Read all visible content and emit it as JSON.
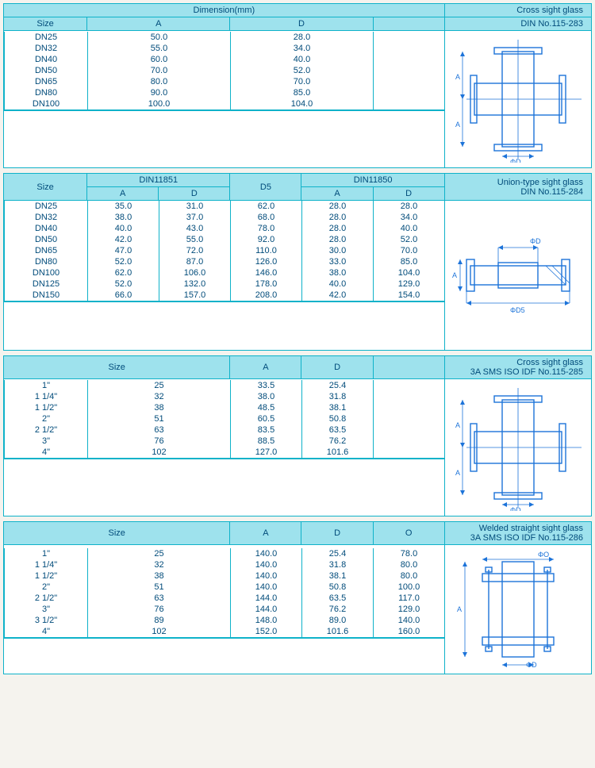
{
  "colors": {
    "header_bg": "#9ee2ed",
    "border": "#0fb2c9",
    "text": "#004b7a",
    "diagram": "#1c73d9",
    "page_bg": "#f5f3ee"
  },
  "table1": {
    "title_main": "Dimension(mm)",
    "title_right": "Cross sight glass",
    "subhead_size": "Size",
    "subhead_A": "A",
    "subhead_D": "D",
    "subhead_right": "DIN    No.115-283",
    "rows": [
      {
        "s": "DN25",
        "a": "50.0",
        "d": "28.0"
      },
      {
        "s": "DN32",
        "a": "55.0",
        "d": "34.0"
      },
      {
        "s": "DN40",
        "a": "60.0",
        "d": "40.0"
      },
      {
        "s": "DN50",
        "a": "70.0",
        "d": "52.0"
      },
      {
        "s": "DN65",
        "a": "80.0",
        "d": "70.0"
      },
      {
        "s": "DN80",
        "a": "90.0",
        "d": "85.0"
      },
      {
        "s": "DN100",
        "a": "100.0",
        "d": "104.0"
      }
    ],
    "diagram": {
      "label_A": "A",
      "label_D": "ΦD"
    }
  },
  "table2": {
    "title_right1": "Union-type sight glass",
    "title_right2": "DIN    No.115-284",
    "h_size": "Size",
    "h_din1": "DIN11851",
    "h_d5": "D5",
    "h_din2": "DIN11850",
    "h_a": "A",
    "h_d": "D",
    "rows": [
      {
        "s": "DN25",
        "a1": "35.0",
        "d1": "31.0",
        "d5": "62.0",
        "a2": "28.0",
        "d2": "28.0"
      },
      {
        "s": "DN32",
        "a1": "38.0",
        "d1": "37.0",
        "d5": "68.0",
        "a2": "28.0",
        "d2": "34.0"
      },
      {
        "s": "DN40",
        "a1": "40.0",
        "d1": "43.0",
        "d5": "78.0",
        "a2": "28.0",
        "d2": "40.0"
      },
      {
        "s": "DN50",
        "a1": "42.0",
        "d1": "55.0",
        "d5": "92.0",
        "a2": "28.0",
        "d2": "52.0"
      },
      {
        "s": "DN65",
        "a1": "47.0",
        "d1": "72.0",
        "d5": "110.0",
        "a2": "30.0",
        "d2": "70.0"
      },
      {
        "s": "DN80",
        "a1": "52.0",
        "d1": "87.0",
        "d5": "126.0",
        "a2": "33.0",
        "d2": "85.0"
      },
      {
        "s": "DN100",
        "a1": "62.0",
        "d1": "106.0",
        "d5": "146.0",
        "a2": "38.0",
        "d2": "104.0"
      },
      {
        "s": "DN125",
        "a1": "52.0",
        "d1": "132.0",
        "d5": "178.0",
        "a2": "40.0",
        "d2": "129.0"
      },
      {
        "s": "DN150",
        "a1": "66.0",
        "d1": "157.0",
        "d5": "208.0",
        "a2": "42.0",
        "d2": "154.0"
      }
    ],
    "diagram": {
      "label_A": "A",
      "label_D": "ΦD",
      "label_D5": "ΦD5"
    }
  },
  "table3": {
    "title_right1": "Cross sight glass",
    "title_right2": "3A  SMS  ISO  IDF  No.115-285",
    "h_size": "Size",
    "h_a": "A",
    "h_d": "D",
    "rows": [
      {
        "s1": "1\"",
        "s2": "25",
        "a": "33.5",
        "d": "25.4"
      },
      {
        "s1": "1 1/4\"",
        "s2": "32",
        "a": "38.0",
        "d": "31.8"
      },
      {
        "s1": "1 1/2\"",
        "s2": "38",
        "a": "48.5",
        "d": "38.1"
      },
      {
        "s1": "2\"",
        "s2": "51",
        "a": "60.5",
        "d": "50.8"
      },
      {
        "s1": "2 1/2\"",
        "s2": "63",
        "a": "83.5",
        "d": "63.5"
      },
      {
        "s1": "3\"",
        "s2": "76",
        "a": "88.5",
        "d": "76.2"
      },
      {
        "s1": "4\"",
        "s2": "102",
        "a": "127.0",
        "d": "101.6"
      }
    ],
    "diagram": {
      "label_A": "A",
      "label_D": "ΦD"
    }
  },
  "table4": {
    "title_right1": "Welded straight sight glass",
    "title_right2": "3A  SMS  ISO  IDF  No.115-286",
    "h_size": "Size",
    "h_a": "A",
    "h_d": "D",
    "h_o": "O",
    "rows": [
      {
        "s1": "1\"",
        "s2": "25",
        "a": "140.0",
        "d": "25.4",
        "o": "78.0"
      },
      {
        "s1": "1 1/4\"",
        "s2": "32",
        "a": "140.0",
        "d": "31.8",
        "o": "80.0"
      },
      {
        "s1": "1 1/2\"",
        "s2": "38",
        "a": "140.0",
        "d": "38.1",
        "o": "80.0"
      },
      {
        "s1": "2\"",
        "s2": "51",
        "a": "140.0",
        "d": "50.8",
        "o": "100.0"
      },
      {
        "s1": "2 1/2\"",
        "s2": "63",
        "a": "144.0",
        "d": "63.5",
        "o": "117.0"
      },
      {
        "s1": "3\"",
        "s2": "76",
        "a": "144.0",
        "d": "76.2",
        "o": "129.0"
      },
      {
        "s1": "3 1/2\"",
        "s2": "89",
        "a": "148.0",
        "d": "89.0",
        "o": "140.0"
      },
      {
        "s1": "4\"",
        "s2": "102",
        "a": "152.0",
        "d": "101.6",
        "o": "160.0"
      }
    ],
    "diagram": {
      "label_A": "A",
      "label_D": "ΦD",
      "label_O": "ΦO"
    }
  }
}
